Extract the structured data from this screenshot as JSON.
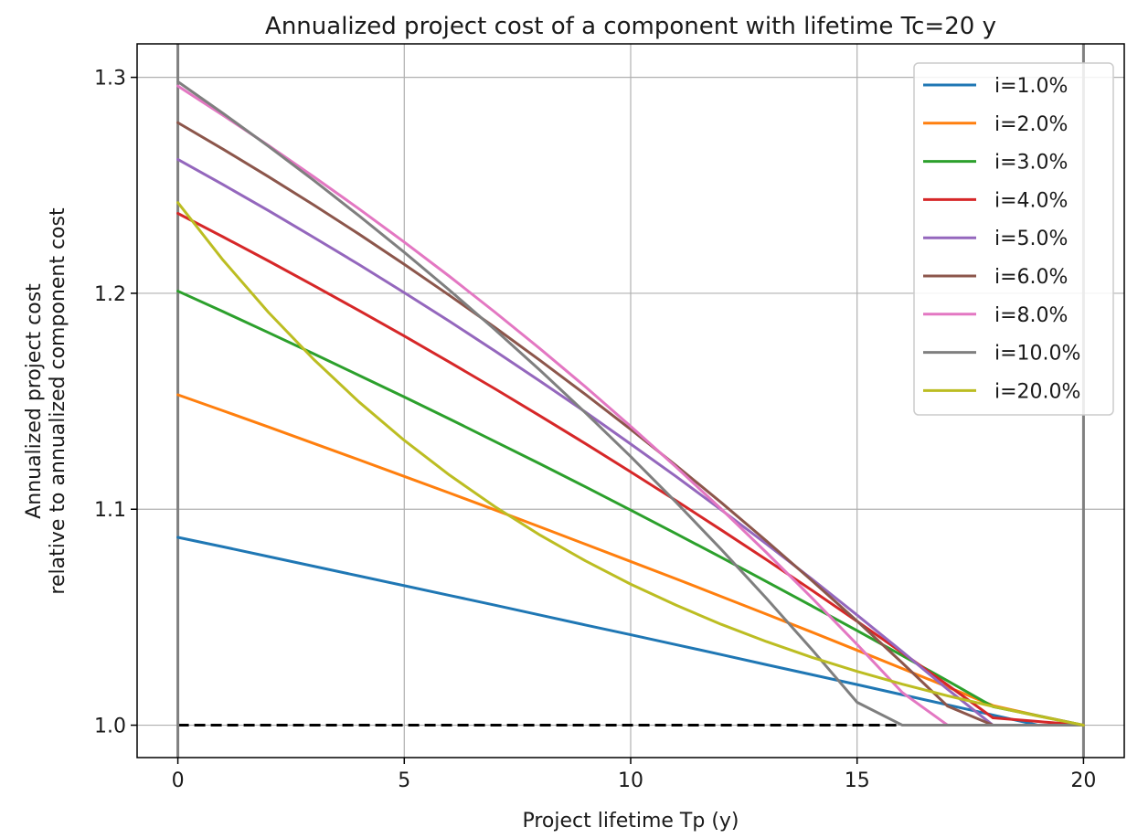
{
  "chart_data": {
    "type": "line",
    "title": "Annualized project cost of a component with lifetime Tc=20 y",
    "xlabel": "Project lifetime Tp (y)",
    "ylabel": [
      "Annualized project cost",
      "relative to annualized component cost"
    ],
    "xlim": [
      -0.9,
      20.9
    ],
    "ylim": [
      0.985,
      1.3155
    ],
    "xticks": [
      0,
      5,
      10,
      15,
      20
    ],
    "xtick_labels": [
      "0",
      "5",
      "10",
      "15",
      "20"
    ],
    "yticks": [
      1.0,
      1.1,
      1.2,
      1.3
    ],
    "ytick_labels": [
      "1.0",
      "1.1",
      "1.2",
      "1.3"
    ],
    "grid": true,
    "legend_position": "top-right",
    "reference_lines": [
      {
        "kind": "horizontal",
        "y": 1.0,
        "style": "dashed",
        "color": "#000000"
      },
      {
        "kind": "vertical",
        "x": 0,
        "color": "#808080"
      },
      {
        "kind": "vertical",
        "x": 20,
        "color": "#808080"
      }
    ],
    "x": [
      0,
      1,
      2,
      3,
      4,
      5,
      6,
      7,
      8,
      9,
      10,
      11,
      12,
      13,
      14,
      15,
      16,
      17,
      18,
      19,
      20
    ],
    "series": [
      {
        "name": "i=1.0%",
        "color": "#1f77b4",
        "values": [
          1.087,
          1.0826,
          1.0781,
          1.0736,
          1.0691,
          1.0646,
          1.0601,
          1.0556,
          1.051,
          1.0464,
          1.0419,
          1.0373,
          1.0327,
          1.028,
          1.0234,
          1.0188,
          1.0141,
          1.0094,
          1.0047,
          1.0,
          1.0
        ]
      },
      {
        "name": "i=2.0%",
        "color": "#ff7f0e",
        "values": [
          1.153,
          1.1456,
          1.1381,
          1.1305,
          1.1229,
          1.1152,
          1.1075,
          1.0997,
          1.0918,
          1.0838,
          1.0758,
          1.0678,
          1.0596,
          1.0514,
          1.0431,
          1.0347,
          1.0262,
          1.0177,
          1.0091,
          1.0044,
          1.0
        ]
      },
      {
        "name": "i=3.0%",
        "color": "#2ca02c",
        "values": [
          1.201,
          1.1915,
          1.1818,
          1.172,
          1.162,
          1.152,
          1.1418,
          1.1314,
          1.121,
          1.1104,
          1.0996,
          1.0887,
          1.0777,
          1.0665,
          1.0552,
          1.0438,
          1.0322,
          1.0205,
          1.0086,
          1.0043,
          1.0
        ]
      },
      {
        "name": "i=4.0%",
        "color": "#d62728",
        "values": [
          1.237,
          1.2261,
          1.215,
          1.2036,
          1.192,
          1.1802,
          1.1681,
          1.1558,
          1.1432,
          1.1304,
          1.1173,
          1.104,
          1.0904,
          1.0766,
          1.0625,
          1.0481,
          1.0335,
          1.0186,
          1.0034,
          1.0017,
          1.0
        ]
      },
      {
        "name": "i=5.0%",
        "color": "#9467bd",
        "values": [
          1.262,
          1.2503,
          1.2383,
          1.2259,
          1.2133,
          1.2003,
          1.187,
          1.1733,
          1.1593,
          1.145,
          1.1302,
          1.1152,
          1.0997,
          1.0839,
          1.0677,
          1.051,
          1.034,
          1.0166,
          1.0,
          1.0,
          1.0
        ]
      },
      {
        "name": "i=6.0%",
        "color": "#8c564b",
        "values": [
          1.279,
          1.2667,
          1.254,
          1.2409,
          1.2274,
          1.2134,
          1.199,
          1.1842,
          1.1689,
          1.1532,
          1.137,
          1.1203,
          1.1031,
          1.0853,
          1.067,
          1.0482,
          1.0288,
          1.0088,
          1.0,
          1.0,
          1.0
        ]
      },
      {
        "name": "i=8.0%",
        "color": "#e377c2",
        "values": [
          1.296,
          1.2824,
          1.2685,
          1.254,
          1.2391,
          1.2237,
          1.2078,
          1.1913,
          1.1743,
          1.1567,
          1.1384,
          1.1196,
          1.1001,
          1.0799,
          1.059,
          1.0374,
          1.0151,
          1.0,
          1.0,
          1.0,
          1.0
        ]
      },
      {
        "name": "i=10.0%",
        "color": "#7f7f7f",
        "values": [
          1.298,
          1.2833,
          1.2681,
          1.2523,
          1.2359,
          1.219,
          1.2014,
          1.1832,
          1.1643,
          1.1447,
          1.1244,
          1.1033,
          1.0814,
          1.0587,
          1.0351,
          1.0106,
          1.0,
          1.0,
          1.0,
          1.0,
          1.0
        ]
      },
      {
        "name": "i=20.0%",
        "color": "#bcbd22",
        "values": [
          1.242,
          1.2153,
          1.1912,
          1.1694,
          1.1497,
          1.1319,
          1.1158,
          1.1012,
          1.088,
          1.0761,
          1.0653,
          1.0556,
          1.0467,
          1.0387,
          1.0314,
          1.0249,
          1.019,
          1.0136,
          1.0087,
          1.0042,
          1.0
        ]
      }
    ]
  }
}
